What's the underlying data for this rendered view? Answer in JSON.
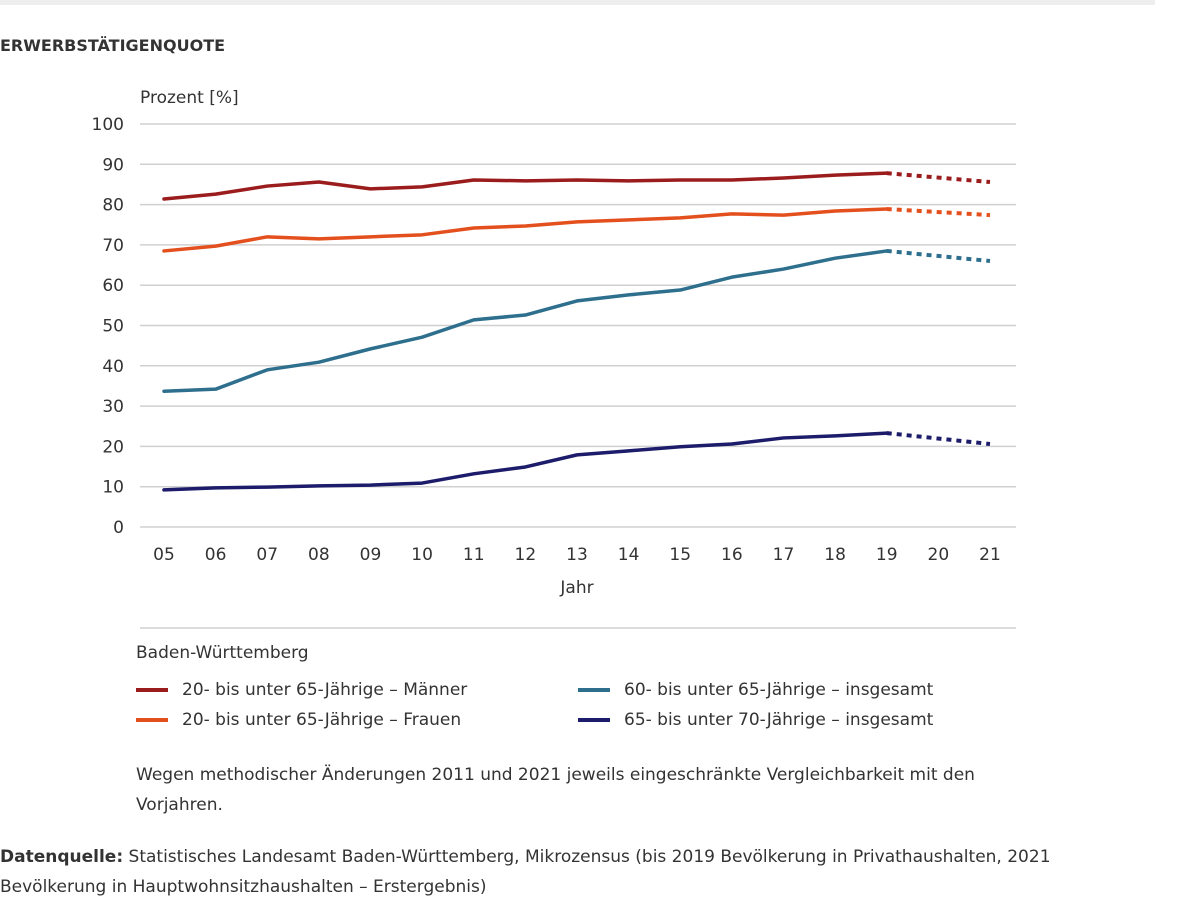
{
  "title": "ERWERBSTÄTIGENQUOTE",
  "chart_data": {
    "type": "line",
    "title": "ERWERBSTÄTIGENQUOTE",
    "ylabel": "Prozent [%]",
    "xlabel": "Jahr",
    "ylim": [
      0,
      100
    ],
    "yticks": [
      0,
      10,
      20,
      30,
      40,
      50,
      60,
      70,
      80,
      90,
      100
    ],
    "categories": [
      "05",
      "06",
      "07",
      "08",
      "09",
      "10",
      "11",
      "12",
      "13",
      "14",
      "15",
      "16",
      "17",
      "18",
      "19",
      "20",
      "21"
    ],
    "grid": true,
    "legend_title": "Baden-Württemberg",
    "legend_placement": "bottom",
    "note": "dashed segment between 19 and 21",
    "series": [
      {
        "name": "20- bis unter 65-Jährige – Männer",
        "color": "#9b1c1c",
        "values": [
          81.4,
          82.6,
          84.6,
          85.6,
          83.9,
          84.4,
          86.1,
          85.9,
          86.1,
          85.9,
          86.1,
          86.1,
          86.6,
          87.3,
          87.8,
          null,
          85.6
        ]
      },
      {
        "name": "20- bis unter 65-Jährige – Frauen",
        "color": "#e4501d",
        "values": [
          68.5,
          69.7,
          72.0,
          71.5,
          72.0,
          72.5,
          74.2,
          74.7,
          75.7,
          76.2,
          76.7,
          77.7,
          77.4,
          78.4,
          78.9,
          null,
          77.4
        ]
      },
      {
        "name": "60- bis unter 65-Jährige – insgesamt",
        "color": "#2e6f8e",
        "values": [
          33.7,
          34.2,
          39.0,
          40.9,
          44.2,
          47.1,
          51.4,
          52.6,
          56.1,
          57.6,
          58.8,
          62.0,
          64.0,
          66.7,
          68.5,
          null,
          66.0
        ]
      },
      {
        "name": "65- bis unter 70-Jährige – insgesamt",
        "color": "#1c1c6b",
        "values": [
          9.2,
          9.7,
          9.9,
          10.2,
          10.4,
          10.9,
          13.2,
          14.9,
          17.9,
          18.9,
          19.9,
          20.6,
          22.1,
          22.6,
          23.3,
          null,
          20.6
        ]
      }
    ]
  },
  "footnote": "Wegen methodischer Änderungen 2011 und 2021 jeweils eingeschränkte Vergleichbarkeit mit den Vorjahren.",
  "source_label": "Datenquelle:",
  "source_text": " Statistisches Landesamt Baden-Württemberg, Mikrozensus (bis 2019 Bevölkerung in Privathaushalten, 2021 Bevölkerung in Hauptwohnsitzhaushalten – Erstergebnis)"
}
